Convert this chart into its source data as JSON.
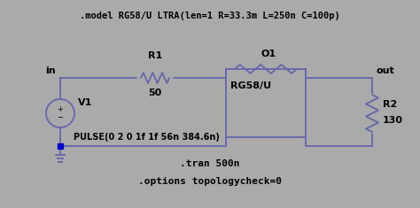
{
  "bg_color": "#aaaaaa",
  "line_color": "#6666aa",
  "text_color": "#000000",
  "title": ".model RG58/U LTRA(len=1 R=33.3m L=250n C=100p)",
  "label_in": "in",
  "label_out": "out",
  "label_v1": "V1",
  "label_r1": "R1",
  "label_r1_val": "50",
  "label_o1": "O1",
  "label_tline": "RG58/U",
  "label_r2": "R2",
  "label_r2_val": "130",
  "label_pulse": "PULSE(0 2 0 1f 1f 56n 384.6n)",
  "label_tran": ".tran 500n",
  "label_options": ".options topologycheck=0",
  "figsize": [
    4.74,
    2.35
  ],
  "dpi": 100
}
